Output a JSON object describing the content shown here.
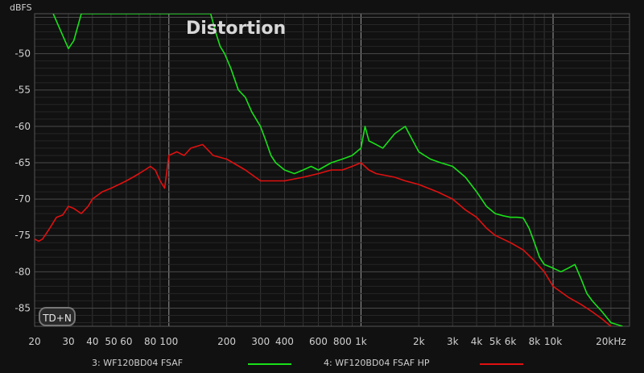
{
  "chart_data": {
    "type": "line",
    "title": "Distortion",
    "ylabel": "dBFS",
    "xlabel": "",
    "xscale": "log",
    "xlim": [
      20,
      25000
    ],
    "ylim": [
      -87.5,
      -44.5
    ],
    "grid": true,
    "x_ticks": [
      {
        "v": 20,
        "label": "20"
      },
      {
        "v": 30,
        "label": "30"
      },
      {
        "v": 40,
        "label": "40"
      },
      {
        "v": 50,
        "label": "50"
      },
      {
        "v": 60,
        "label": "60"
      },
      {
        "v": 80,
        "label": "80"
      },
      {
        "v": 100,
        "label": "100"
      },
      {
        "v": 200,
        "label": "200"
      },
      {
        "v": 300,
        "label": "300"
      },
      {
        "v": 400,
        "label": "400"
      },
      {
        "v": 600,
        "label": "600"
      },
      {
        "v": 800,
        "label": "800"
      },
      {
        "v": 1000,
        "label": "1k"
      },
      {
        "v": 2000,
        "label": "2k"
      },
      {
        "v": 3000,
        "label": "3k"
      },
      {
        "v": 4000,
        "label": "4k"
      },
      {
        "v": 5000,
        "label": "5k"
      },
      {
        "v": 6000,
        "label": "6k"
      },
      {
        "v": 8000,
        "label": "8k"
      },
      {
        "v": 10000,
        "label": "10k"
      },
      {
        "v": 20000,
        "label": "20kHz"
      }
    ],
    "y_ticks": [
      {
        "v": -50,
        "label": "-50"
      },
      {
        "v": -55,
        "label": "-55"
      },
      {
        "v": -60,
        "label": "-60"
      },
      {
        "v": -65,
        "label": "-65"
      },
      {
        "v": -70,
        "label": "-70"
      },
      {
        "v": -75,
        "label": "-75"
      },
      {
        "v": -80,
        "label": "-80"
      },
      {
        "v": -85,
        "label": "-85"
      }
    ],
    "series": [
      {
        "name": "3: WF120BD04 FSAF",
        "color": "#19e019",
        "points": [
          [
            25,
            -44.5
          ],
          [
            28,
            -47.5
          ],
          [
            30,
            -49.3
          ],
          [
            32,
            -48.2
          ],
          [
            35,
            -44.5
          ],
          [
            165,
            -44.5
          ],
          [
            175,
            -47
          ],
          [
            185,
            -49
          ],
          [
            195,
            -50
          ],
          [
            210,
            -52
          ],
          [
            230,
            -55
          ],
          [
            250,
            -56
          ],
          [
            270,
            -58
          ],
          [
            300,
            -60
          ],
          [
            320,
            -62
          ],
          [
            340,
            -64
          ],
          [
            360,
            -65
          ],
          [
            400,
            -66
          ],
          [
            450,
            -66.5
          ],
          [
            500,
            -66
          ],
          [
            550,
            -65.5
          ],
          [
            600,
            -66
          ],
          [
            700,
            -65
          ],
          [
            800,
            -64.5
          ],
          [
            900,
            -64
          ],
          [
            1000,
            -63
          ],
          [
            1050,
            -60
          ],
          [
            1100,
            -62
          ],
          [
            1200,
            -62.5
          ],
          [
            1300,
            -63
          ],
          [
            1500,
            -61
          ],
          [
            1700,
            -60
          ],
          [
            2000,
            -63.5
          ],
          [
            2300,
            -64.5
          ],
          [
            2600,
            -65
          ],
          [
            3000,
            -65.5
          ],
          [
            3500,
            -67
          ],
          [
            4000,
            -69
          ],
          [
            4500,
            -71
          ],
          [
            5000,
            -72
          ],
          [
            5500,
            -72.3
          ],
          [
            6000,
            -72.5
          ],
          [
            6500,
            -72.5
          ],
          [
            7000,
            -72.6
          ],
          [
            7500,
            -74
          ],
          [
            8000,
            -76
          ],
          [
            8500,
            -78
          ],
          [
            9000,
            -79
          ],
          [
            10000,
            -79.5
          ],
          [
            11000,
            -80
          ],
          [
            12000,
            -79.5
          ],
          [
            13000,
            -79
          ],
          [
            14000,
            -81
          ],
          [
            15000,
            -83
          ],
          [
            16000,
            -84
          ],
          [
            18000,
            -85.5
          ],
          [
            20000,
            -87
          ],
          [
            23000,
            -87.5
          ]
        ]
      },
      {
        "name": "4: WF120BD04 FSAF HP",
        "color": "#e01010",
        "points": [
          [
            20,
            -75.5
          ],
          [
            21,
            -75.8
          ],
          [
            22,
            -75.5
          ],
          [
            24,
            -74
          ],
          [
            26,
            -72.5
          ],
          [
            28,
            -72.2
          ],
          [
            30,
            -71
          ],
          [
            32,
            -71.3
          ],
          [
            35,
            -72
          ],
          [
            38,
            -71
          ],
          [
            40,
            -70
          ],
          [
            45,
            -69
          ],
          [
            50,
            -68.5
          ],
          [
            55,
            -68
          ],
          [
            60,
            -67.5
          ],
          [
            65,
            -67
          ],
          [
            70,
            -66.5
          ],
          [
            75,
            -66
          ],
          [
            80,
            -65.5
          ],
          [
            85,
            -66
          ],
          [
            90,
            -67.5
          ],
          [
            95,
            -68.5
          ],
          [
            100,
            -64
          ],
          [
            110,
            -63.5
          ],
          [
            120,
            -64
          ],
          [
            130,
            -63
          ],
          [
            150,
            -62.5
          ],
          [
            170,
            -64
          ],
          [
            200,
            -64.5
          ],
          [
            250,
            -66
          ],
          [
            300,
            -67.5
          ],
          [
            350,
            -67.5
          ],
          [
            400,
            -67.5
          ],
          [
            500,
            -67
          ],
          [
            600,
            -66.5
          ],
          [
            700,
            -66
          ],
          [
            800,
            -66
          ],
          [
            900,
            -65.5
          ],
          [
            1000,
            -65
          ],
          [
            1100,
            -66
          ],
          [
            1200,
            -66.5
          ],
          [
            1500,
            -67
          ],
          [
            1700,
            -67.5
          ],
          [
            2000,
            -68
          ],
          [
            2500,
            -69
          ],
          [
            3000,
            -70
          ],
          [
            3500,
            -71.5
          ],
          [
            4000,
            -72.5
          ],
          [
            4500,
            -74
          ],
          [
            5000,
            -75
          ],
          [
            6000,
            -76
          ],
          [
            7000,
            -77
          ],
          [
            8000,
            -78.5
          ],
          [
            9000,
            -80
          ],
          [
            10000,
            -82
          ],
          [
            12000,
            -83.5
          ],
          [
            14000,
            -84.5
          ],
          [
            16000,
            -85.5
          ],
          [
            18000,
            -86.5
          ],
          [
            20000,
            -87.5
          ]
        ]
      }
    ]
  },
  "controls": {
    "mode_button": "TD+N"
  }
}
